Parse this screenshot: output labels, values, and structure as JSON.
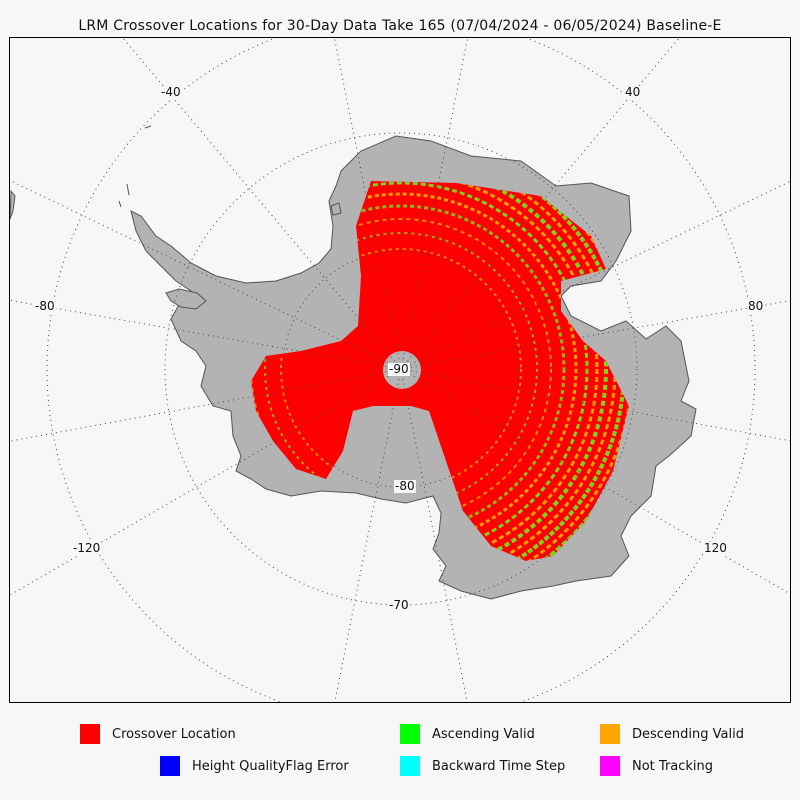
{
  "title": "LRM Crossover Locations for 30-Day Data Take 165 (07/04/2024 - 06/05/2024) Baseline-E",
  "map": {
    "pole_label": "-90",
    "latitude_labels": {
      "lat80": "-80",
      "lat70": "-70"
    },
    "longitude_labels": {
      "lon_neg40": "-40",
      "lon_40": "40",
      "lon_neg80": "-80",
      "lon_80": "80",
      "lon_neg120": "-120",
      "lon_120": "120"
    },
    "colors": {
      "land": "#b3b3b3",
      "crossover": "#ff0000",
      "ascending": "#7fd11b",
      "descending": "#f5a000",
      "graticule": "#444444"
    }
  },
  "legend": {
    "crossover": {
      "label": "Crossover Location",
      "color": "#ff0000"
    },
    "ascending": {
      "label": "Ascending Valid",
      "color": "#00ff00"
    },
    "descending": {
      "label": "Descending Valid",
      "color": "#ffa500"
    },
    "height_error": {
      "label": "Height QualityFlag Error",
      "color": "#0000ff"
    },
    "backward": {
      "label": "Backward Time Step",
      "color": "#00ffff"
    },
    "not_tracking": {
      "label": "Not Tracking",
      "color": "#ff00ff"
    }
  }
}
